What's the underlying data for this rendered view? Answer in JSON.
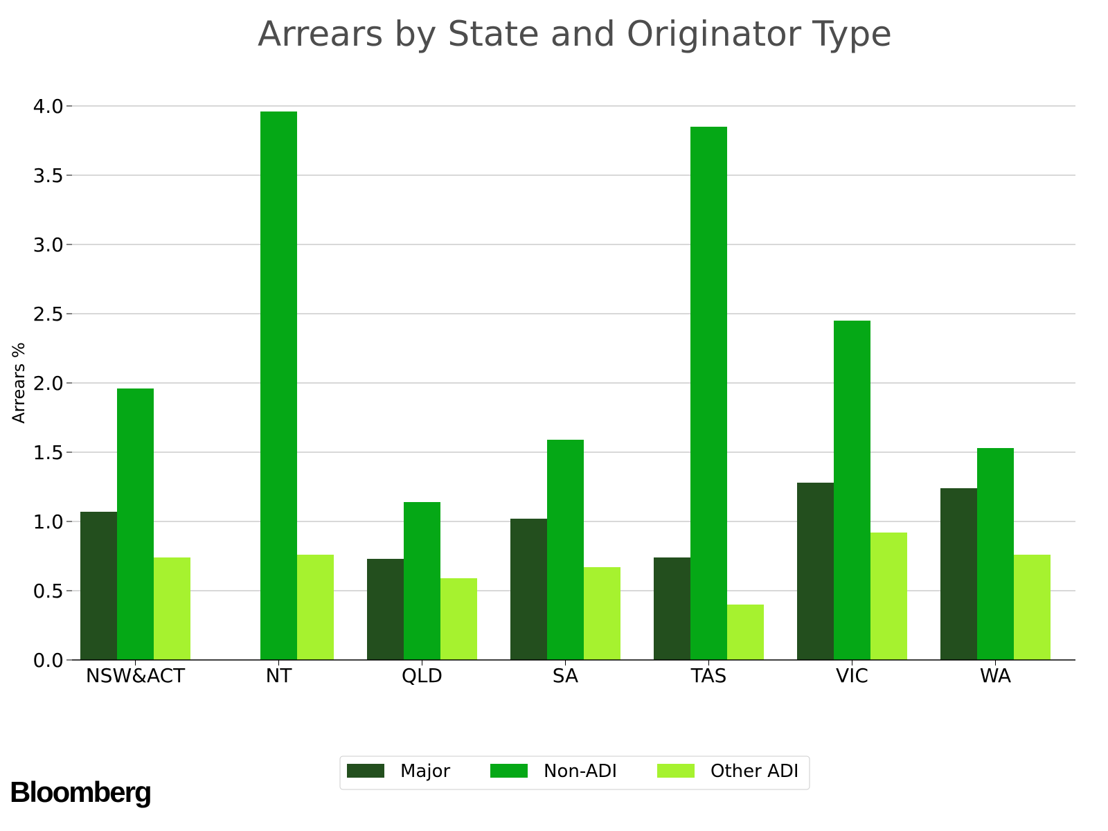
{
  "chart_data": {
    "type": "bar",
    "title": "Arrears by State and Originator Type",
    "xlabel": "",
    "ylabel": "Arrears %",
    "ylim": [
      0,
      4.0
    ],
    "yticks": [
      "0.0",
      "0.5",
      "1.0",
      "1.5",
      "2.0",
      "2.5",
      "3.0",
      "3.5",
      "4.0"
    ],
    "grid": true,
    "legend_position": "bottom-center",
    "categories": [
      "NSW&ACT",
      "NT",
      "QLD",
      "SA",
      "TAS",
      "VIC",
      "WA"
    ],
    "series": [
      {
        "name": "Major",
        "color": "#234f1e",
        "values": [
          1.07,
          null,
          0.73,
          1.02,
          0.74,
          1.28,
          1.24
        ]
      },
      {
        "name": "Non-ADI",
        "color": "#05a816",
        "values": [
          1.96,
          3.96,
          1.14,
          1.59,
          3.85,
          2.45,
          1.53
        ]
      },
      {
        "name": "Other ADI",
        "color": "#a6f22f",
        "values": [
          0.74,
          0.76,
          0.59,
          0.67,
          0.4,
          0.92,
          0.76
        ]
      }
    ]
  },
  "brand": {
    "logo_text": "Bloomberg"
  }
}
